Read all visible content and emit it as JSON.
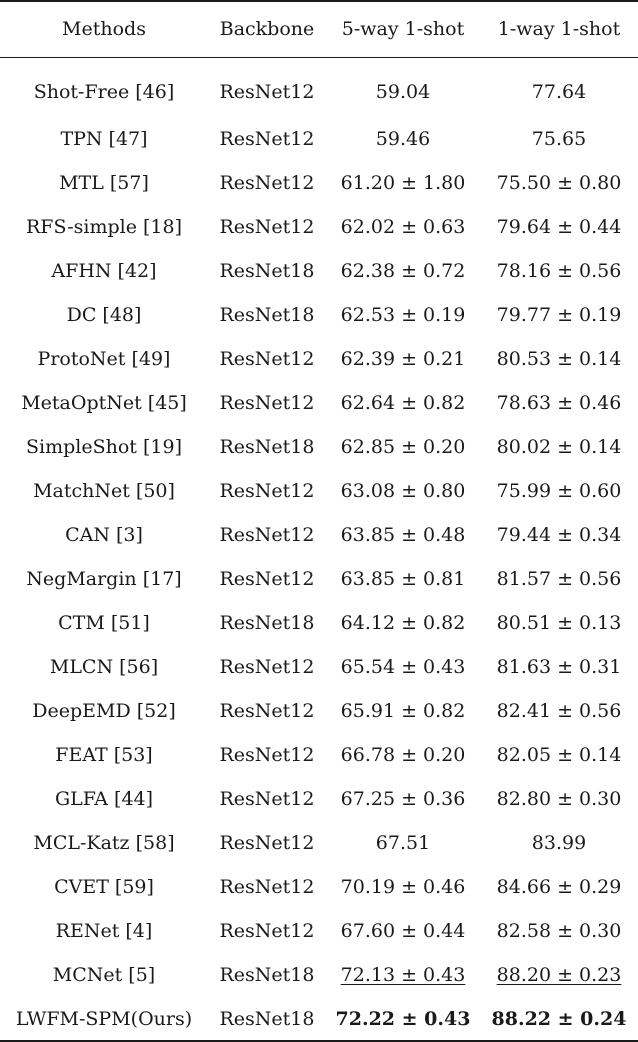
{
  "header": {
    "methods": "Methods",
    "backbone": "Backbone",
    "col5way": "5-way 1-shot",
    "col1way": "1-way 1-shot"
  },
  "rows": [
    {
      "method": "Shot-Free [46]",
      "backbone": "ResNet12",
      "five": "59.04",
      "one": "77.64"
    },
    {
      "method": "TPN [47]",
      "backbone": "ResNet12",
      "five": "59.46",
      "one": "75.65"
    },
    {
      "method": "MTL [57]",
      "backbone": "ResNet12",
      "five": "61.20 ± 1.80",
      "one": "75.50 ± 0.80"
    },
    {
      "method": "RFS-simple [18]",
      "backbone": "ResNet12",
      "five": "62.02 ± 0.63",
      "one": "79.64 ± 0.44"
    },
    {
      "method": "AFHN [42]",
      "backbone": "ResNet18",
      "five": "62.38 ± 0.72",
      "one": "78.16 ± 0.56"
    },
    {
      "method": "DC [48]",
      "backbone": "ResNet18",
      "five": "62.53 ± 0.19",
      "one": "79.77 ± 0.19"
    },
    {
      "method": "ProtoNet [49]",
      "backbone": "ResNet12",
      "five": "62.39 ± 0.21",
      "one": "80.53 ± 0.14"
    },
    {
      "method": "MetaOptNet [45]",
      "backbone": "ResNet12",
      "five": "62.64 ± 0.82",
      "one": "78.63 ± 0.46"
    },
    {
      "method": "SimpleShot [19]",
      "backbone": "ResNet18",
      "five": "62.85 ± 0.20",
      "one": "80.02 ± 0.14"
    },
    {
      "method": "MatchNet [50]",
      "backbone": "ResNet12",
      "five": "63.08 ± 0.80",
      "one": "75.99 ± 0.60"
    },
    {
      "method": "CAN [3]",
      "backbone": "ResNet12",
      "five": "63.85 ± 0.48",
      "one": "79.44 ± 0.34"
    },
    {
      "method": "NegMargin [17]",
      "backbone": "ResNet12",
      "five": "63.85 ± 0.81",
      "one": "81.57 ± 0.56"
    },
    {
      "method": "CTM [51]",
      "backbone": "ResNet18",
      "five": "64.12 ± 0.82",
      "one": "80.51 ± 0.13"
    },
    {
      "method": "MLCN [56]",
      "backbone": "ResNet12",
      "five": "65.54 ± 0.43",
      "one": "81.63 ± 0.31"
    },
    {
      "method": "DeepEMD [52]",
      "backbone": "ResNet12",
      "five": "65.91 ± 0.82",
      "one": "82.41 ± 0.56"
    },
    {
      "method": "FEAT [53]",
      "backbone": "ResNet12",
      "five": "66.78 ± 0.20",
      "one": "82.05 ± 0.14"
    },
    {
      "method": "GLFA [44]",
      "backbone": "ResNet12",
      "five": "67.25 ± 0.36",
      "one": "82.80 ± 0.30"
    },
    {
      "method": "MCL-Katz [58]",
      "backbone": "ResNet12",
      "five": "67.51",
      "one": "83.99"
    },
    {
      "method": "CVET [59]",
      "backbone": "ResNet12",
      "five": "70.19 ± 0.46",
      "one": "84.66 ± 0.29"
    },
    {
      "method": "RENet [4]",
      "backbone": "ResNet12",
      "five": "67.60 ± 0.44",
      "one": "82.58 ± 0.30"
    },
    {
      "method": "MCNet [5]",
      "backbone": "ResNet18",
      "five": "72.13 ± 0.43",
      "one": "88.20 ± 0.23",
      "style": "underline"
    },
    {
      "method": "LWFM-SPM(Ours)",
      "backbone": "ResNet18",
      "five": "72.22 ± 0.43",
      "one": "88.22 ± 0.24",
      "style": "bold"
    }
  ]
}
